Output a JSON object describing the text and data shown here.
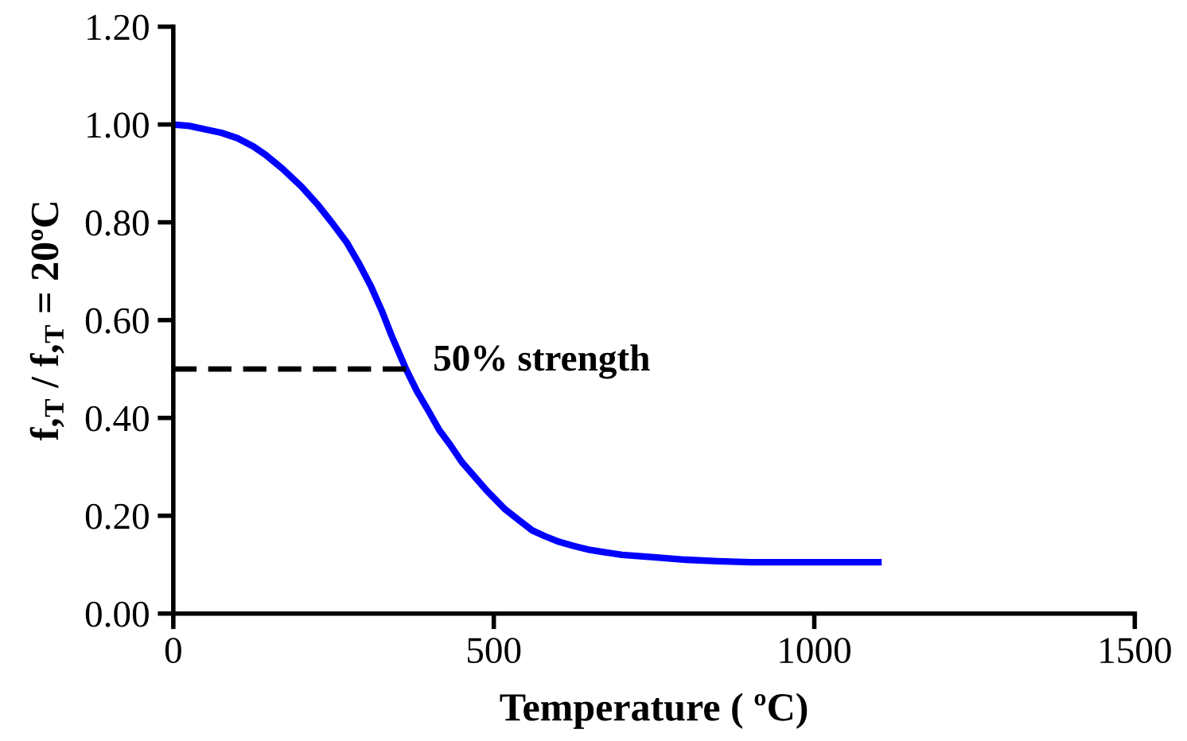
{
  "chart_data": {
    "type": "line",
    "xlabel": "Temperature ( ºC)",
    "ylabel": "f,$_{T}$ / f,$_{T}$ = 20ºC",
    "xlim": [
      0,
      1500
    ],
    "xticks": [
      0,
      500,
      1000,
      1500
    ],
    "ylim": [
      0,
      1.2
    ],
    "yticks": [
      {
        "value": 0,
        "label": "0.00"
      },
      {
        "value": 0.2,
        "label": "0.20"
      },
      {
        "value": 0.4,
        "label": "0.40"
      },
      {
        "value": 0.6,
        "label": "0.60"
      },
      {
        "value": 0.8,
        "label": "0.80"
      },
      {
        "value": 1.0,
        "label": "1.00"
      },
      {
        "value": 1.2,
        "label": "1.20"
      }
    ],
    "grid": false,
    "legend": false,
    "series": [
      {
        "color": "#0000ff",
        "line_style": "solid",
        "x": [
          0,
          25,
          50,
          75,
          100,
          125,
          144,
          170,
          200,
          226,
          250,
          270,
          290,
          308,
          325,
          340,
          363,
          380,
          400,
          415,
          432,
          450,
          470,
          490,
          516,
          540,
          560,
          580,
          599,
          625,
          650,
          675,
          700,
          750,
          800,
          850,
          900,
          1000,
          1100
        ],
        "values": [
          1.0,
          0.997,
          0.99,
          0.983,
          0.972,
          0.955,
          0.938,
          0.91,
          0.873,
          0.835,
          0.795,
          0.76,
          0.715,
          0.67,
          0.62,
          0.57,
          0.5,
          0.455,
          0.41,
          0.375,
          0.345,
          0.31,
          0.28,
          0.25,
          0.215,
          0.19,
          0.17,
          0.158,
          0.148,
          0.138,
          0.13,
          0.125,
          0.12,
          0.115,
          0.11,
          0.107,
          0.105,
          0.105,
          0.105
        ]
      },
      {
        "color": "#000000",
        "line_style": "dashed",
        "x": [
          0,
          363
        ],
        "values": [
          0.5,
          0.5
        ]
      }
    ],
    "annotations": [
      "50% strength"
    ]
  }
}
